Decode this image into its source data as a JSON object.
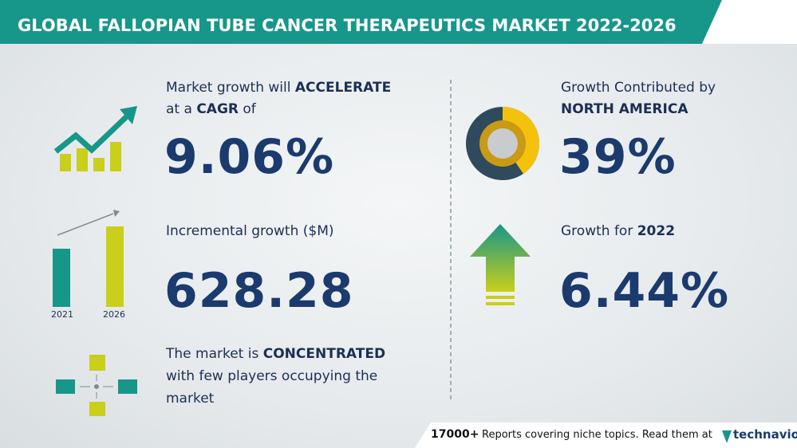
{
  "header": {
    "title": "GLOBAL FALLOPIAN TUBE CANCER THERAPEUTICS MARKET 2022-2026"
  },
  "cagr": {
    "line1_text": "Market growth will",
    "line1_bold": "ACCELERATE",
    "line2_text": "at a",
    "line2_bold": "CAGR",
    "line2_end": "of",
    "value": "9.06%"
  },
  "incremental": {
    "label": "Incremental growth ($M)",
    "value": "628.28",
    "years": [
      "2021",
      "2026"
    ]
  },
  "concentration": {
    "line1_text": "The market is",
    "line1_bold": "CONCENTRATED",
    "line2": "with few players occupying the",
    "line3": "market"
  },
  "region": {
    "label": "Growth Contributed by",
    "bold": "NORTH AMERICA",
    "value": "39%"
  },
  "yoy": {
    "label": "Growth for",
    "bold": "2022",
    "value": "6.44%"
  },
  "footer": {
    "count": "17000+",
    "text": "Reports covering niche topics. Read them at",
    "brand": "technavio"
  }
}
